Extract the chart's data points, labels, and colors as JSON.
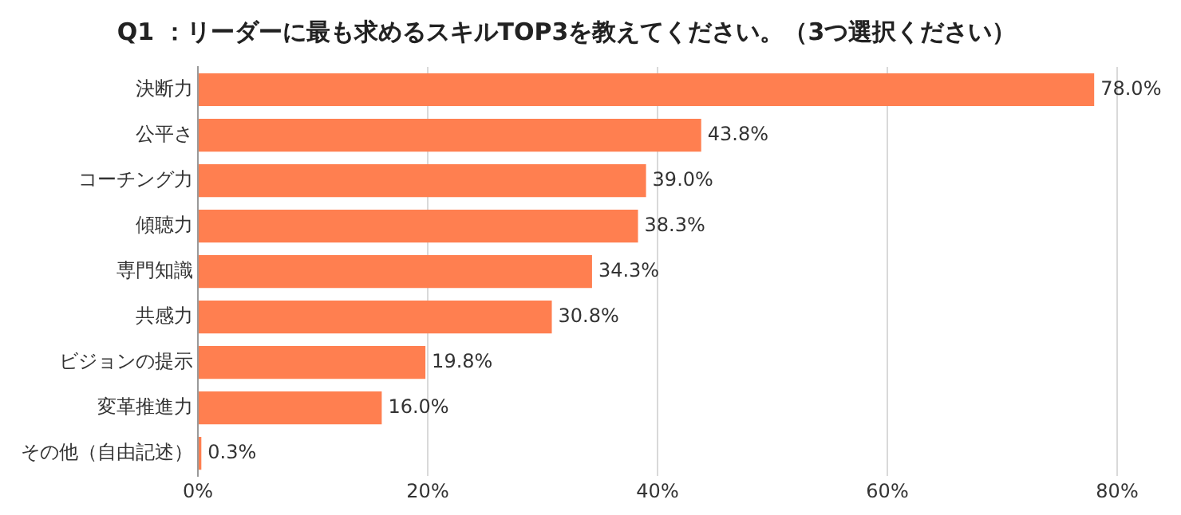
{
  "chart_data": {
    "type": "bar",
    "orientation": "horizontal",
    "title": "Q1 ：リーダーに最も求めるスキルTOP3を教えてください。（3つ選択ください）",
    "categories": [
      "決断力",
      "公平さ",
      "コーチング力",
      "傾聴力",
      "専門知識",
      "共感力",
      "ビジョンの提示",
      "変革推進力",
      "その他（自由記述）"
    ],
    "values": [
      78.0,
      43.8,
      39.0,
      38.3,
      34.3,
      30.8,
      19.8,
      16.0,
      0.3
    ],
    "value_labels": [
      "78.0%",
      "43.8%",
      "39.0%",
      "38.3%",
      "34.3%",
      "30.8%",
      "19.8%",
      "16.0%",
      "0.3%"
    ],
    "color": "#ff7f50",
    "xlim": [
      0,
      80
    ],
    "xticks": [
      {
        "value": 0,
        "label": "0%"
      },
      {
        "value": 20,
        "label": "20%"
      },
      {
        "value": 40,
        "label": "40%"
      },
      {
        "value": 60,
        "label": "60%"
      },
      {
        "value": 80,
        "label": "80%"
      }
    ],
    "grid": "x",
    "legend": false
  }
}
